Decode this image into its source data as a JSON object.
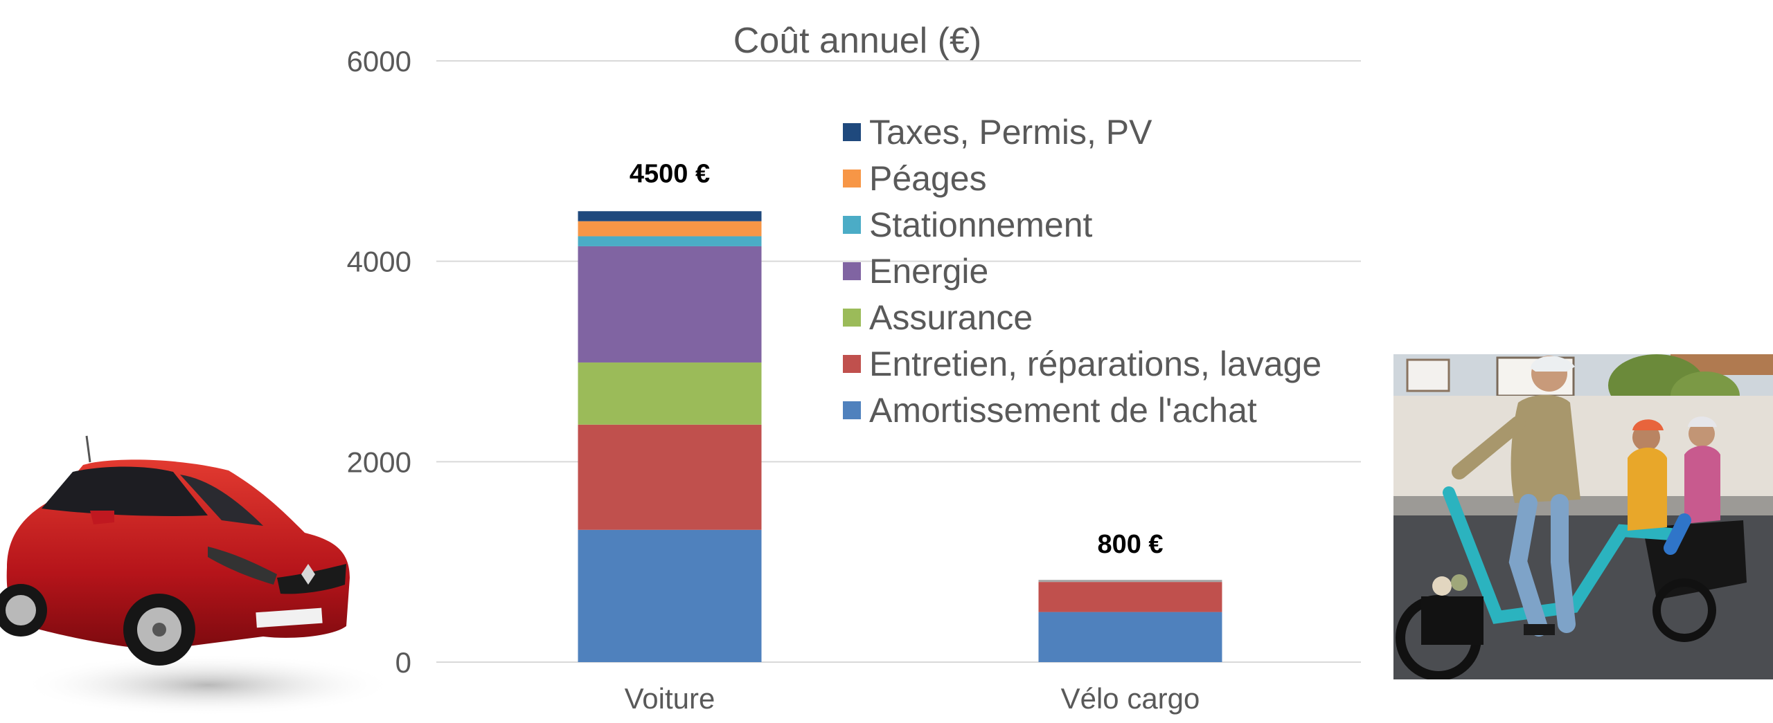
{
  "chart_data": {
    "type": "bar",
    "stacked": true,
    "title": "Coût annuel (€)",
    "xlabel": "",
    "ylabel": "",
    "ylim": [
      0,
      6000
    ],
    "yticks": [
      0,
      2000,
      4000,
      6000
    ],
    "grid": true,
    "legend_position": "top-right, inside",
    "categories": [
      "Voiture",
      "Vélo cargo"
    ],
    "totals_labels": [
      "4500 €",
      "800 €"
    ],
    "series": [
      {
        "name": "Amortissement de l'achat",
        "color": "#4F81BD",
        "values": [
          1320,
          500
        ]
      },
      {
        "name": "Entretien, réparations, lavage",
        "color": "#C0504D",
        "values": [
          1050,
          300
        ]
      },
      {
        "name": "Assurance",
        "color": "#9BBB59",
        "values": [
          620,
          0
        ]
      },
      {
        "name": "Energie",
        "color": "#8064A2",
        "values": [
          1160,
          0
        ]
      },
      {
        "name": "Stationnement",
        "color": "#4BACC6",
        "values": [
          100,
          0
        ]
      },
      {
        "name": "Péages",
        "color": "#F79646",
        "values": [
          150,
          0
        ]
      },
      {
        "name": "Taxes, Permis, PV",
        "color": "#1F497D",
        "values": [
          100,
          0
        ]
      }
    ]
  },
  "images": {
    "car": "red-car-photo",
    "bike": "cargo-bike-family-photo"
  }
}
